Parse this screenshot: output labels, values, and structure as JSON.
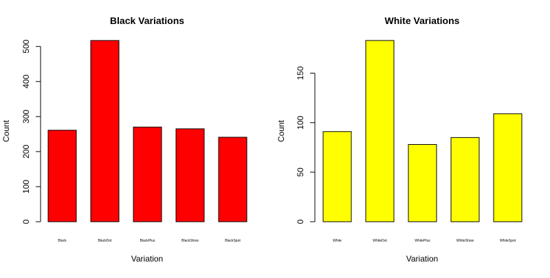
{
  "chart_data": [
    {
      "type": "bar",
      "title": "Black Variations",
      "xlabel": "Variation",
      "ylabel": "Count",
      "categories": [
        "Black",
        "BlackDot",
        "BlackPlus",
        "BlackShow",
        "BlackSpot"
      ],
      "values": [
        261,
        517,
        270,
        265,
        241
      ],
      "yticks": [
        0,
        100,
        200,
        300,
        400,
        500
      ],
      "ylim": [
        0,
        517
      ],
      "bar_color": "#ff0000",
      "grid": false
    },
    {
      "type": "bar",
      "title": "White Variations",
      "xlabel": "Variation",
      "ylabel": "Count",
      "categories": [
        "White",
        "WhiteDot",
        "WhitePlus",
        "WhiteShow",
        "WhiteSpot"
      ],
      "values": [
        91,
        183,
        78,
        85,
        109
      ],
      "yticks": [
        0,
        50,
        100,
        150
      ],
      "ylim": [
        0,
        183
      ],
      "bar_color": "#ffff00",
      "grid": false
    }
  ]
}
